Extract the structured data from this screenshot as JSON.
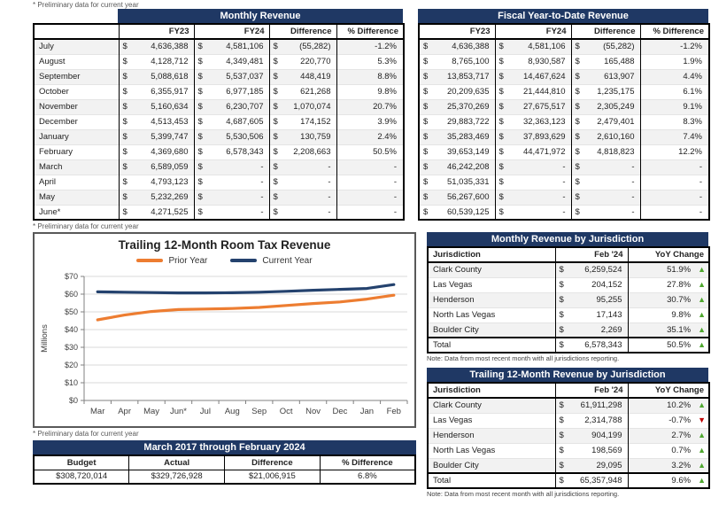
{
  "sym": {
    "dollar": "$"
  },
  "footnotes": {
    "preliminary": "* Preliminary data for current year"
  },
  "monthly_revenue": {
    "title": "Monthly Revenue",
    "columns": {
      "c1": "FY23",
      "c2": "FY24",
      "c3": "Difference",
      "c4": "% Difference"
    },
    "rows": [
      {
        "month": "July",
        "fy23": "4,636,388",
        "fy24": "4,581,106",
        "diff": "(55,282)",
        "pct": "-1.2%"
      },
      {
        "month": "August",
        "fy23": "4,128,712",
        "fy24": "4,349,481",
        "diff": "220,770",
        "pct": "5.3%"
      },
      {
        "month": "September",
        "fy23": "5,088,618",
        "fy24": "5,537,037",
        "diff": "448,419",
        "pct": "8.8%"
      },
      {
        "month": "October",
        "fy23": "6,355,917",
        "fy24": "6,977,185",
        "diff": "621,268",
        "pct": "9.8%"
      },
      {
        "month": "November",
        "fy23": "5,160,634",
        "fy24": "6,230,707",
        "diff": "1,070,074",
        "pct": "20.7%"
      },
      {
        "month": "December",
        "fy23": "4,513,453",
        "fy24": "4,687,605",
        "diff": "174,152",
        "pct": "3.9%"
      },
      {
        "month": "January",
        "fy23": "5,399,747",
        "fy24": "5,530,506",
        "diff": "130,759",
        "pct": "2.4%"
      },
      {
        "month": "February",
        "fy23": "4,369,680",
        "fy24": "6,578,343",
        "diff": "2,208,663",
        "pct": "50.5%"
      },
      {
        "month": "March",
        "fy23": "6,589,059",
        "fy24": "-",
        "diff": "-",
        "pct": "-"
      },
      {
        "month": "April",
        "fy23": "4,793,123",
        "fy24": "-",
        "diff": "-",
        "pct": "-"
      },
      {
        "month": "May",
        "fy23": "5,232,269",
        "fy24": "-",
        "diff": "-",
        "pct": "-"
      },
      {
        "month": "June*",
        "fy23": "4,271,525",
        "fy24": "-",
        "diff": "-",
        "pct": "-"
      }
    ]
  },
  "ytd_revenue": {
    "title": "Fiscal Year-to-Date Revenue",
    "columns": {
      "c1": "FY23",
      "c2": "FY24",
      "c3": "Difference",
      "c4": "% Difference"
    },
    "rows": [
      {
        "fy23": "4,636,388",
        "fy24": "4,581,106",
        "diff": "(55,282)",
        "pct": "-1.2%"
      },
      {
        "fy23": "8,765,100",
        "fy24": "8,930,587",
        "diff": "165,488",
        "pct": "1.9%"
      },
      {
        "fy23": "13,853,717",
        "fy24": "14,467,624",
        "diff": "613,907",
        "pct": "4.4%"
      },
      {
        "fy23": "20,209,635",
        "fy24": "21,444,810",
        "diff": "1,235,175",
        "pct": "6.1%"
      },
      {
        "fy23": "25,370,269",
        "fy24": "27,675,517",
        "diff": "2,305,249",
        "pct": "9.1%"
      },
      {
        "fy23": "29,883,722",
        "fy24": "32,363,123",
        "diff": "2,479,401",
        "pct": "8.3%"
      },
      {
        "fy23": "35,283,469",
        "fy24": "37,893,629",
        "diff": "2,610,160",
        "pct": "7.4%"
      },
      {
        "fy23": "39,653,149",
        "fy24": "44,471,972",
        "diff": "4,818,823",
        "pct": "12.2%"
      },
      {
        "fy23": "46,242,208",
        "fy24": "-",
        "diff": "-",
        "pct": "-"
      },
      {
        "fy23": "51,035,331",
        "fy24": "-",
        "diff": "-",
        "pct": "-"
      },
      {
        "fy23": "56,267,600",
        "fy24": "-",
        "diff": "-",
        "pct": "-"
      },
      {
        "fy23": "60,539,125",
        "fy24": "-",
        "diff": "-",
        "pct": "-"
      }
    ]
  },
  "chart_data": {
    "type": "line",
    "title": "Trailing 12-Month Room Tax Revenue",
    "ylabel": "Millions",
    "units": "millions USD",
    "categories": [
      "Mar",
      "Apr",
      "May",
      "Jun*",
      "Jul",
      "Aug",
      "Sep",
      "Oct",
      "Nov",
      "Dec",
      "Jan",
      "Feb"
    ],
    "y_ticks": [
      "$0",
      "$10",
      "$20",
      "$30",
      "$40",
      "$50",
      "$60",
      "$70"
    ],
    "ylim": [
      0,
      70
    ],
    "grid": true,
    "legend_position": "top",
    "series": [
      {
        "name": "Prior Year",
        "color": "#ED7D31",
        "values": [
          45.5,
          48.2,
          50.2,
          51.3,
          51.6,
          51.9,
          52.5,
          53.6,
          54.7,
          55.6,
          57.2,
          59.4
        ]
      },
      {
        "name": "Current Year",
        "color": "#24426E",
        "values": [
          61.3,
          61.1,
          60.9,
          60.7,
          60.7,
          60.8,
          61.1,
          61.6,
          62.2,
          62.7,
          63.2,
          65.4
        ]
      }
    ]
  },
  "monthly_by_jurisdiction": {
    "title": "Monthly Revenue by Jurisdiction",
    "columns": {
      "c1": "Jurisdiction",
      "c2": "Feb '24",
      "c3": "YoY Change"
    },
    "rows": [
      {
        "name": "Clark County",
        "value": "6,259,524",
        "yoy": "51.9%",
        "arrow": "▲",
        "dir": "up"
      },
      {
        "name": "Las Vegas",
        "value": "204,152",
        "yoy": "27.8%",
        "arrow": "▲",
        "dir": "up"
      },
      {
        "name": "Henderson",
        "value": "95,255",
        "yoy": "30.7%",
        "arrow": "▲",
        "dir": "up"
      },
      {
        "name": "North Las Vegas",
        "value": "17,143",
        "yoy": "9.8%",
        "arrow": "▲",
        "dir": "up"
      },
      {
        "name": "Boulder City",
        "value": "2,269",
        "yoy": "35.1%",
        "arrow": "▲",
        "dir": "up"
      }
    ],
    "total": {
      "name": "Total",
      "value": "6,578,343",
      "yoy": "50.5%",
      "arrow": "▲",
      "dir": "up"
    },
    "note": "Note: Data from most recent month with all jurisdictions reporting."
  },
  "trailing_by_jurisdiction": {
    "title": "Trailing 12-Month Revenue by Jurisdiction",
    "columns": {
      "c1": "Jurisdiction",
      "c2": "Feb '24",
      "c3": "YoY Change"
    },
    "rows": [
      {
        "name": "Clark County",
        "value": "61,911,298",
        "yoy": "10.2%",
        "arrow": "▲",
        "dir": "up"
      },
      {
        "name": "Las Vegas",
        "value": "2,314,788",
        "yoy": "-0.7%",
        "arrow": "▼",
        "dir": "down"
      },
      {
        "name": "Henderson",
        "value": "904,199",
        "yoy": "2.7%",
        "arrow": "▲",
        "dir": "up"
      },
      {
        "name": "North Las Vegas",
        "value": "198,569",
        "yoy": "0.7%",
        "arrow": "▲",
        "dir": "up"
      },
      {
        "name": "Boulder City",
        "value": "29,095",
        "yoy": "3.2%",
        "arrow": "▲",
        "dir": "up"
      }
    ],
    "total": {
      "name": "Total",
      "value": "65,357,948",
      "yoy": "9.6%",
      "arrow": "▲",
      "dir": "up"
    },
    "note": "Note: Data from most recent month with all jurisdictions reporting."
  },
  "budget_table": {
    "title": "March 2017 through February 2024",
    "columns": {
      "c1": "Budget",
      "c2": "Actual",
      "c3": "Difference",
      "c4": "% Difference"
    },
    "row": {
      "budget": "$308,720,014",
      "actual": "$329,726,928",
      "diff": "$21,006,915",
      "pct": "6.8%"
    }
  },
  "colors": {
    "navy": "#1F3864",
    "stripe": "#F2F2F2",
    "green": "#4EA72E",
    "red": "#C00000",
    "orange": "#ED7D31"
  }
}
